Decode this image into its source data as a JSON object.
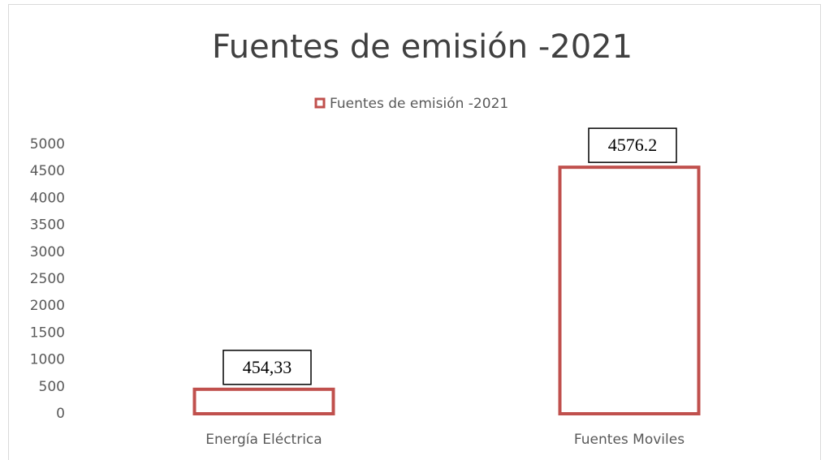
{
  "chart_data": {
    "type": "bar",
    "title": "Fuentes de emisión -2021",
    "categories": [
      "Energía Eléctrica",
      "Fuentes Moviles"
    ],
    "series": [
      {
        "name": "Fuentes de emisión -2021",
        "color": "#c0504d",
        "values": [
          454.33,
          4576.2
        ],
        "value_labels": [
          "454,33",
          "4576.2"
        ]
      }
    ],
    "ylim": [
      0,
      5000
    ],
    "yticks": [
      0,
      500,
      1000,
      1500,
      2000,
      2500,
      3000,
      3500,
      4000,
      4500,
      5000
    ],
    "grid": false,
    "legend": "top"
  }
}
